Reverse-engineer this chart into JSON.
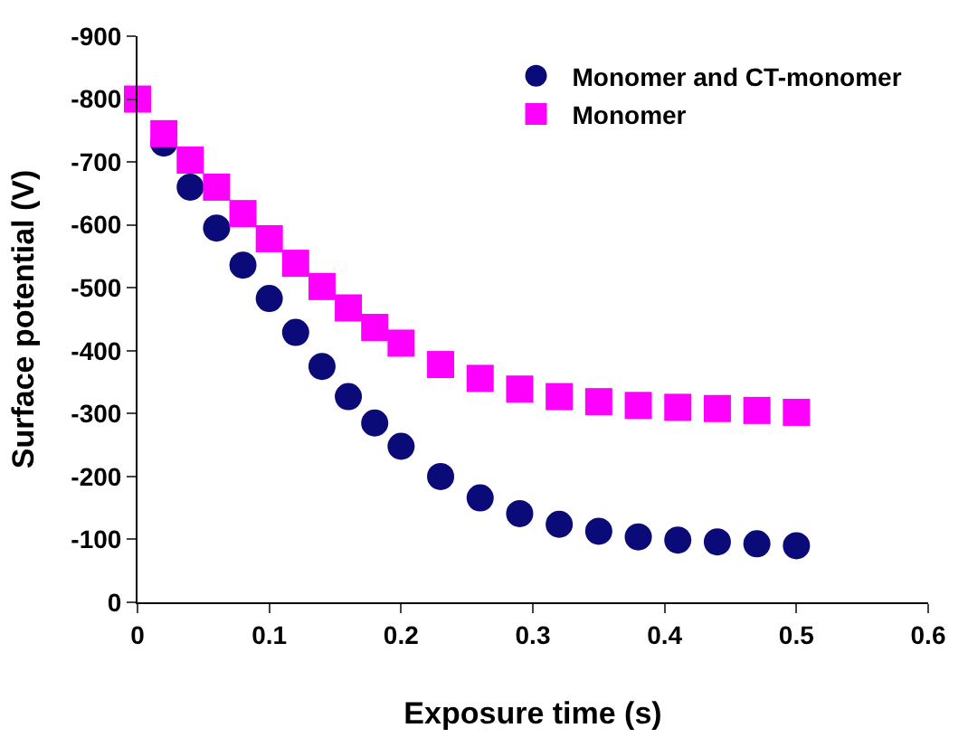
{
  "chart_data": {
    "type": "scatter",
    "xlabel": "Exposure time (s)",
    "ylabel": "Surface potential (V)",
    "xlim": [
      0,
      0.6
    ],
    "xticks": [
      0,
      0.1,
      0.2,
      0.3,
      0.4,
      0.5,
      0.6
    ],
    "ylim": [
      0,
      -900
    ],
    "yticks": [
      0,
      -100,
      -200,
      -300,
      -400,
      -500,
      -600,
      -700,
      -800,
      -900
    ],
    "legend": "top right",
    "series": [
      {
        "name": "Monomer and CT-monomer",
        "color": "#0a0a78",
        "marker": "circle",
        "x": [
          0.02,
          0.04,
          0.06,
          0.08,
          0.1,
          0.12,
          0.14,
          0.16,
          0.18,
          0.2,
          0.23,
          0.26,
          0.29,
          0.32,
          0.35,
          0.38,
          0.41,
          0.44,
          0.47,
          0.5
        ],
        "values": [
          -730,
          -660,
          -595,
          -536,
          -483,
          -429,
          -375,
          -327,
          -285,
          -248,
          -200,
          -166,
          -141,
          -124,
          -113,
          -104,
          -99,
          -96,
          -93,
          -90
        ]
      },
      {
        "name": "Monomer",
        "color": "#ff00ff",
        "marker": "square",
        "x": [
          0,
          0.02,
          0.04,
          0.06,
          0.08,
          0.1,
          0.12,
          0.14,
          0.16,
          0.18,
          0.2,
          0.23,
          0.26,
          0.29,
          0.32,
          0.35,
          0.38,
          0.41,
          0.44,
          0.47,
          0.5
        ],
        "values": [
          -800,
          -745,
          -703,
          -660,
          -618,
          -578,
          -539,
          -502,
          -468,
          -437,
          -412,
          -378,
          -356,
          -339,
          -327,
          -319,
          -313,
          -310,
          -308,
          -305,
          -302
        ]
      }
    ]
  }
}
